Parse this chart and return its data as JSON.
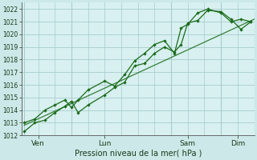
{
  "background_color": "#cce8e8",
  "plot_bg_color": "#d8f0f0",
  "grid_color": "#a8cccc",
  "line_color": "#1a6b1a",
  "title": "Pression niveau de la mer( hPa )",
  "ylim": [
    1012,
    1022.5
  ],
  "yticks": [
    1012,
    1013,
    1014,
    1015,
    1016,
    1017,
    1018,
    1019,
    1020,
    1021,
    1022
  ],
  "day_labels": [
    "Ven",
    "Lun",
    "Sam",
    "Dim"
  ],
  "day_positions": [
    0.5,
    2.5,
    5.0,
    6.5
  ],
  "vlines_x": [
    0.08,
    1.5,
    4.5,
    6.0
  ],
  "series1_x": [
    0.08,
    0.4,
    0.7,
    1.0,
    1.3,
    1.5,
    1.7,
    2.0,
    2.5,
    2.8,
    3.1,
    3.4,
    3.7,
    4.0,
    4.3,
    4.6,
    4.8,
    5.0,
    5.3,
    5.6,
    6.0,
    6.3,
    6.6,
    6.9
  ],
  "series1_y": [
    1012.3,
    1013.0,
    1013.2,
    1013.8,
    1014.3,
    1014.7,
    1013.8,
    1014.4,
    1015.2,
    1015.8,
    1016.2,
    1017.5,
    1017.7,
    1018.5,
    1019.0,
    1018.6,
    1019.2,
    1020.9,
    1021.1,
    1021.9,
    1021.8,
    1021.2,
    1020.4,
    1021.0
  ],
  "series2_x": [
    0.08,
    0.4,
    0.7,
    1.0,
    1.3,
    1.5,
    1.7,
    2.0,
    2.5,
    2.8,
    3.1,
    3.4,
    3.7,
    4.0,
    4.3,
    4.6,
    4.8,
    5.0,
    5.3,
    5.6,
    6.0,
    6.3,
    6.6,
    6.9
  ],
  "series2_y": [
    1013.0,
    1013.3,
    1014.0,
    1014.4,
    1014.8,
    1014.2,
    1014.8,
    1015.6,
    1016.3,
    1015.9,
    1016.8,
    1017.9,
    1018.5,
    1019.2,
    1019.5,
    1018.5,
    1020.5,
    1020.8,
    1021.7,
    1022.0,
    1021.7,
    1021.0,
    1021.2,
    1021.0
  ],
  "trend_x": [
    0.08,
    7.0
  ],
  "trend_y": [
    1012.8,
    1021.2
  ],
  "xlim": [
    0,
    7.0
  ]
}
